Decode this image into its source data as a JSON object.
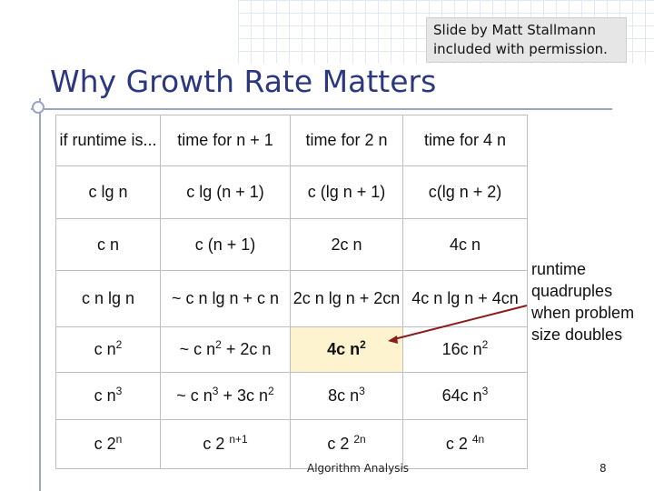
{
  "credit": {
    "line1": "Slide by Matt Stallmann",
    "line2": "included with permission."
  },
  "title": "Why Growth Rate Matters",
  "table": {
    "headers": [
      "if runtime is...",
      "time for n + 1",
      "time for 2 n",
      "time for 4 n"
    ],
    "rows": [
      [
        {
          "t": "c lg n"
        },
        {
          "t": "c lg (n + 1)"
        },
        {
          "t": "c (lg n + 1)"
        },
        {
          "t": "c(lg n + 2)"
        }
      ],
      [
        {
          "t": "c n"
        },
        {
          "t": "c (n + 1)"
        },
        {
          "t": "2c n"
        },
        {
          "t": "4c n"
        }
      ],
      [
        {
          "t": "c n lg n"
        },
        {
          "t": "~ c n lg n + c n"
        },
        {
          "t": "2c n lg n + 2cn"
        },
        {
          "t": "4c n lg n + 4cn"
        }
      ],
      [
        {
          "b": "c n",
          "s": "2"
        },
        {
          "b": "~ c n",
          "s": "2",
          "a": " + 2c n"
        },
        {
          "b": "4c n",
          "s": "2"
        },
        {
          "b": "16c n",
          "s": "2"
        }
      ],
      [
        {
          "b": "c n",
          "s": "3"
        },
        {
          "b": "~ c n",
          "s": "3",
          "a": " + 3c n",
          "s2": "2"
        },
        {
          "b": "8c n",
          "s": "3"
        },
        {
          "b": "64c n",
          "s": "3"
        }
      ],
      [
        {
          "b": "c 2",
          "s": "n"
        },
        {
          "b": "c 2 ",
          "s": "n+1"
        },
        {
          "b": "c 2 ",
          "s": "2n"
        },
        {
          "b": "c 2 ",
          "s": "4n"
        }
      ]
    ]
  },
  "note": "runtime quadruples when problem size doubles",
  "footer": "Algorithm Analysis",
  "page_number": "8",
  "colors": {
    "title": "#2b3880",
    "highlight": "#fdf3cf",
    "arrow": "#8b1a1a"
  }
}
